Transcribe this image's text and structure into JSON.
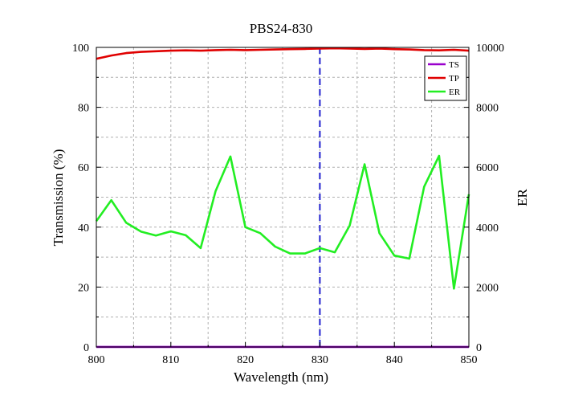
{
  "chart_data": {
    "type": "line",
    "title": "PBS24-830",
    "xlabel": "Wavelength (nm)",
    "ylabel": "Transmission (%)",
    "y2label": "ER",
    "xlim": [
      800,
      850
    ],
    "ylim": [
      0,
      100
    ],
    "y2lim": [
      0,
      10000
    ],
    "xticks": [
      800,
      810,
      820,
      830,
      840,
      850
    ],
    "yticks": [
      0,
      20,
      40,
      60,
      80,
      100
    ],
    "y2ticks": [
      0,
      2000,
      4000,
      6000,
      8000,
      10000
    ],
    "grid": true,
    "legend_position": "top-right",
    "marker_line": {
      "x": 830,
      "color": "#1f1fcf",
      "style": "dashed"
    },
    "series": [
      {
        "name": "TS",
        "axis": "left",
        "color": "#9900cc",
        "x": [
          800,
          805,
          810,
          815,
          820,
          825,
          830,
          835,
          840,
          845,
          850
        ],
        "y": [
          0.02,
          0.02,
          0.02,
          0.02,
          0.02,
          0.03,
          0.03,
          0.02,
          0.02,
          0.02,
          0.02
        ]
      },
      {
        "name": "TP",
        "axis": "left",
        "color": "#e00000",
        "x": [
          800,
          802,
          804,
          806,
          808,
          810,
          812,
          814,
          816,
          818,
          820,
          822,
          824,
          826,
          828,
          830,
          832,
          834,
          836,
          838,
          840,
          842,
          844,
          846,
          848,
          850
        ],
        "y": [
          96.2,
          97.3,
          98.1,
          98.5,
          98.7,
          98.9,
          99.0,
          98.9,
          99.1,
          99.2,
          99.1,
          99.2,
          99.3,
          99.4,
          99.5,
          99.6,
          99.7,
          99.6,
          99.5,
          99.6,
          99.4,
          99.3,
          99.1,
          99.0,
          99.2,
          98.9
        ]
      },
      {
        "name": "ER",
        "axis": "right",
        "color": "#22ee22",
        "x": [
          800,
          802,
          804,
          806,
          808,
          810,
          812,
          814,
          816,
          818,
          820,
          822,
          824,
          826,
          828,
          830,
          832,
          834,
          836,
          838,
          840,
          842,
          844,
          846,
          848,
          850
        ],
        "y": [
          4200,
          4900,
          4150,
          3850,
          3720,
          3860,
          3730,
          3300,
          5200,
          6360,
          4000,
          3800,
          3350,
          3120,
          3120,
          3300,
          3160,
          4050,
          6100,
          3800,
          3050,
          2950,
          5350,
          6380,
          1950,
          5100
        ]
      }
    ]
  }
}
